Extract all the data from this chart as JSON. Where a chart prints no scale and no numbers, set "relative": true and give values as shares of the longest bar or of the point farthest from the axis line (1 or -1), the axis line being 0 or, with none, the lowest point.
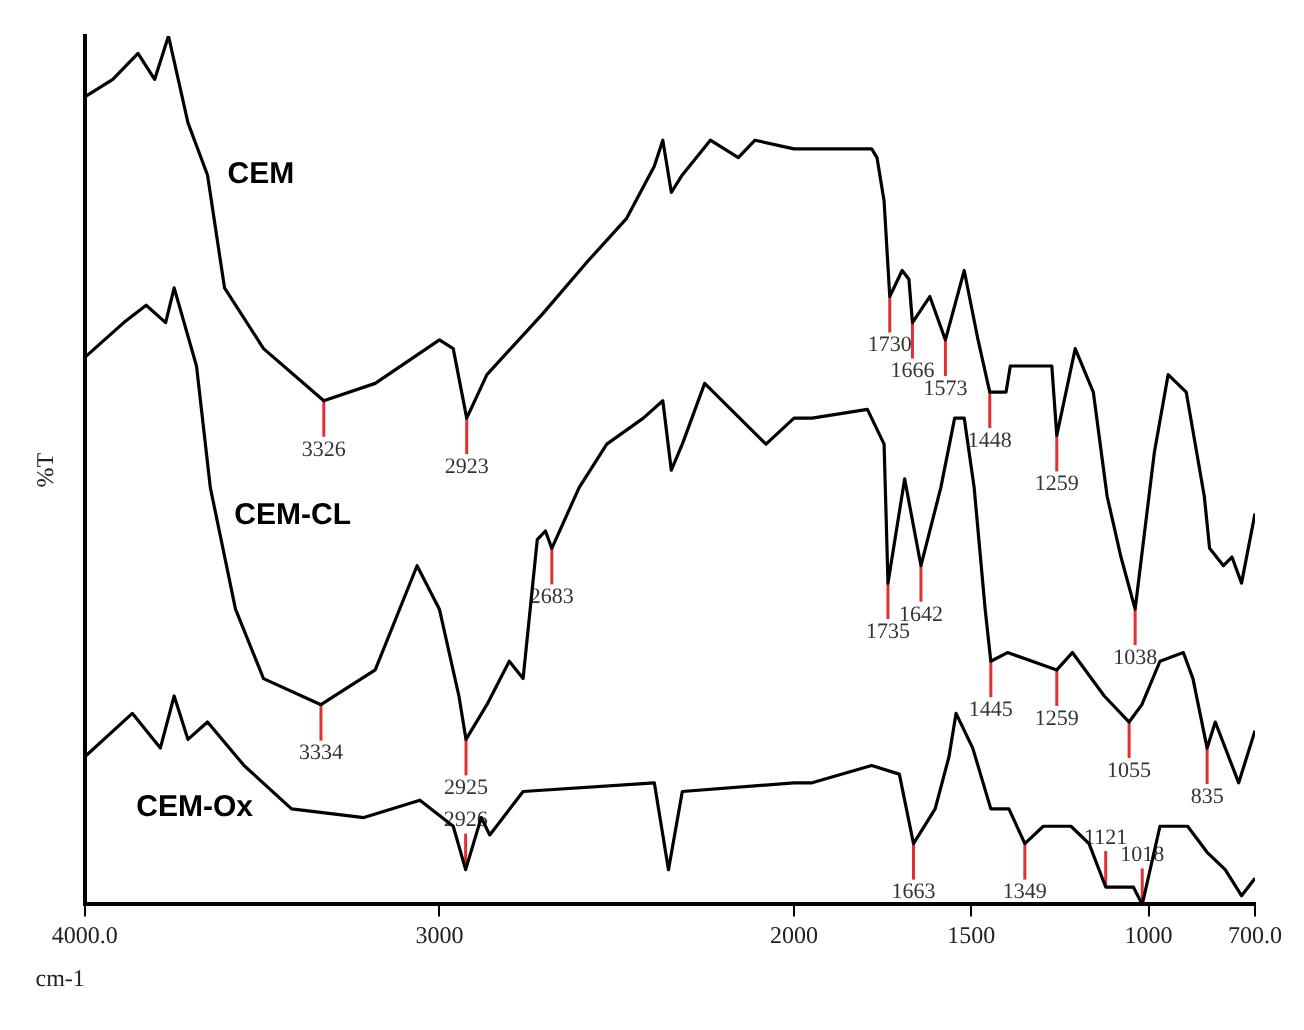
{
  "chart_data": {
    "type": "line",
    "relative": true,
    "xlabel": "cm-1",
    "ylabel": "%T",
    "xlim": [
      4000,
      700
    ],
    "xticks": [
      {
        "value": 4000,
        "label": "4000.0"
      },
      3000,
      2000,
      1500,
      1000,
      {
        "value": 700,
        "label": "700.0"
      }
    ],
    "series": [
      {
        "name": "CEM",
        "color": "#000000",
        "x": [
          4000,
          3921,
          3850,
          3803,
          3764,
          3709,
          3654,
          3606,
          3496,
          3326,
          3181,
          3000,
          2961,
          2923,
          2866,
          2709,
          2583,
          2472,
          2394,
          2370,
          2346,
          2315,
          2236,
          2157,
          2110,
          2000,
          1949,
          1781,
          1766,
          1746,
          1730,
          1695,
          1676,
          1666,
          1617,
          1573,
          1520,
          1481,
          1448,
          1402,
          1390,
          1351,
          1273,
          1259,
          1207,
          1156,
          1117,
          1078,
          1038,
          984,
          945,
          894,
          843,
          828,
          789,
          765,
          738,
          700
        ],
        "values": [
          0.93,
          0.95,
          0.98,
          0.95,
          1.0,
          0.9,
          0.84,
          0.71,
          0.64,
          0.58,
          0.6,
          0.65,
          0.64,
          0.56,
          0.61,
          0.68,
          0.74,
          0.79,
          0.85,
          0.88,
          0.82,
          0.84,
          0.88,
          0.86,
          0.88,
          0.87,
          0.87,
          0.87,
          0.86,
          0.81,
          0.7,
          0.73,
          0.72,
          0.67,
          0.7,
          0.65,
          0.73,
          0.65,
          0.59,
          0.59,
          0.62,
          0.62,
          0.62,
          0.54,
          0.64,
          0.59,
          0.47,
          0.4,
          0.34,
          0.52,
          0.61,
          0.59,
          0.47,
          0.41,
          0.39,
          0.4,
          0.37,
          0.45
        ]
      },
      {
        "name": "CEM-CL",
        "color": "#000000",
        "x": [
          4000,
          3890,
          3827,
          3772,
          3748,
          3685,
          3646,
          3575,
          3496,
          3334,
          3181,
          3063,
          3000,
          2945,
          2925,
          2866,
          2803,
          2764,
          2724,
          2701,
          2683,
          2606,
          2528,
          2425,
          2370,
          2346,
          2315,
          2252,
          2079,
          2000,
          1949,
          1793,
          1746,
          1735,
          1688,
          1642,
          1586,
          1547,
          1520,
          1492,
          1461,
          1445,
          1398,
          1259,
          1215,
          1125,
          1055,
          1019,
          968,
          902,
          875,
          835,
          812,
          746,
          700
        ],
        "values": [
          0.63,
          0.67,
          0.69,
          0.67,
          0.71,
          0.62,
          0.48,
          0.34,
          0.26,
          0.23,
          0.27,
          0.39,
          0.34,
          0.24,
          0.19,
          0.23,
          0.28,
          0.26,
          0.42,
          0.43,
          0.41,
          0.48,
          0.53,
          0.56,
          0.58,
          0.5,
          0.53,
          0.6,
          0.53,
          0.56,
          0.56,
          0.57,
          0.53,
          0.37,
          0.49,
          0.39,
          0.48,
          0.56,
          0.56,
          0.48,
          0.34,
          0.28,
          0.29,
          0.27,
          0.29,
          0.24,
          0.21,
          0.23,
          0.28,
          0.29,
          0.26,
          0.18,
          0.21,
          0.14,
          0.2
        ]
      },
      {
        "name": "CEM-Ox",
        "color": "#000000",
        "x": [
          4000,
          3866,
          3787,
          3748,
          3709,
          3654,
          3551,
          3417,
          3213,
          3055,
          2961,
          2926,
          2882,
          2858,
          2764,
          2394,
          2354,
          2315,
          2000,
          1949,
          1781,
          1703,
          1663,
          1602,
          1563,
          1543,
          1496,
          1445,
          1394,
          1349,
          1297,
          1219,
          1168,
          1121,
          1043,
          1018,
          968,
          890,
          835,
          784,
          738,
          700
        ],
        "values": [
          0.17,
          0.22,
          0.18,
          0.24,
          0.19,
          0.21,
          0.16,
          0.11,
          0.1,
          0.12,
          0.09,
          0.04,
          0.1,
          0.08,
          0.13,
          0.14,
          0.04,
          0.13,
          0.14,
          0.14,
          0.16,
          0.15,
          0.07,
          0.11,
          0.17,
          0.22,
          0.18,
          0.11,
          0.11,
          0.07,
          0.09,
          0.09,
          0.07,
          0.02,
          0.02,
          0.0,
          0.09,
          0.09,
          0.06,
          0.04,
          0.01,
          0.03
        ]
      }
    ],
    "annotations": [
      {
        "text": "3326",
        "x": 3326,
        "y": 0.58
      },
      {
        "text": "2923",
        "x": 2923,
        "y": 0.56
      },
      {
        "text": "1730",
        "x": 1730,
        "y": 0.7
      },
      {
        "text": "1666",
        "x": 1666,
        "y": 0.67
      },
      {
        "text": "1573",
        "x": 1573,
        "y": 0.65
      },
      {
        "text": "1448",
        "x": 1448,
        "y": 0.59
      },
      {
        "text": "1259",
        "x": 1259,
        "y": 0.54
      },
      {
        "text": "1038",
        "x": 1038,
        "y": 0.34
      },
      {
        "text": "3334",
        "x": 3334,
        "y": 0.23
      },
      {
        "text": "2925",
        "x": 2925,
        "y": 0.19
      },
      {
        "text": "2683",
        "x": 2683,
        "y": 0.41
      },
      {
        "text": "1735",
        "x": 1735,
        "y": 0.37
      },
      {
        "text": "1642",
        "x": 1642,
        "y": 0.39
      },
      {
        "text": "1445",
        "x": 1445,
        "y": 0.28
      },
      {
        "text": "1259",
        "x": 1259,
        "y": 0.27
      },
      {
        "text": "1055",
        "x": 1055,
        "y": 0.21
      },
      {
        "text": "835",
        "x": 835,
        "y": 0.18
      },
      {
        "text": "2926",
        "x": 2926,
        "y": 0.04
      },
      {
        "text": "1663",
        "x": 1663,
        "y": 0.07
      },
      {
        "text": "1349",
        "x": 1349,
        "y": 0.07
      },
      {
        "text": "1121",
        "x": 1121,
        "y": 0.02
      },
      {
        "text": "1018",
        "x": 1018,
        "y": 0.0
      }
    ]
  }
}
